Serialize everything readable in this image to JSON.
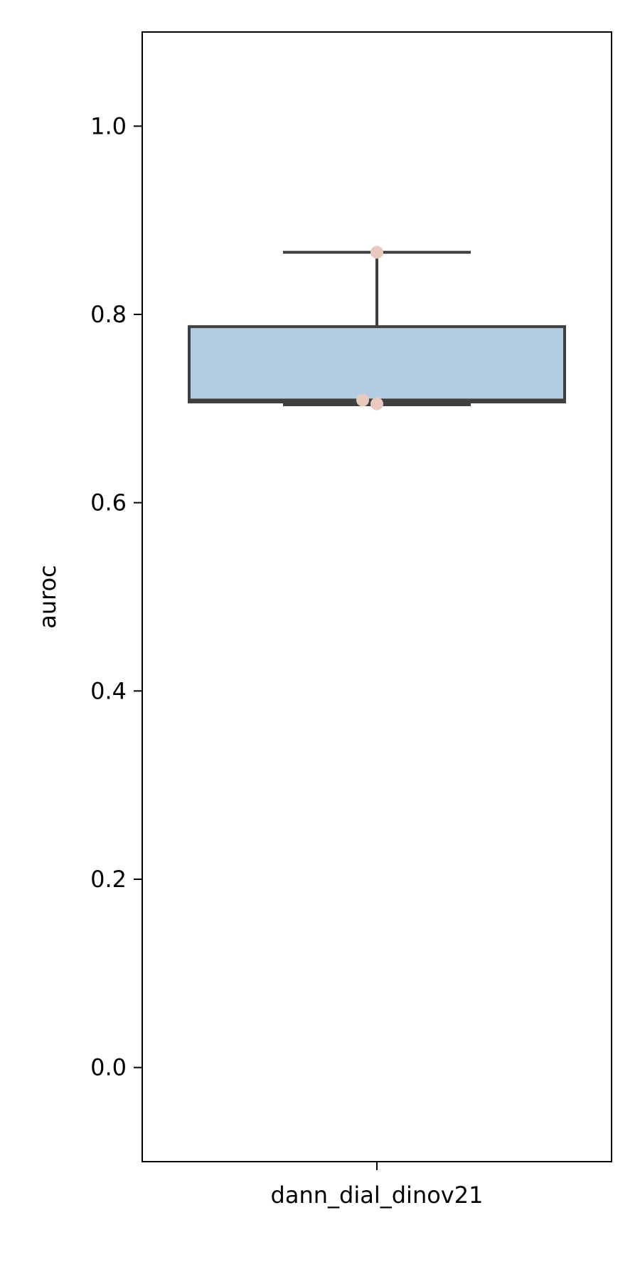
{
  "chart_data": {
    "type": "box",
    "title": "",
    "xlabel": "",
    "ylabel": "auroc",
    "ylim": [
      -0.1,
      1.1
    ],
    "yticks": [
      0.0,
      0.2,
      0.4,
      0.6,
      0.8,
      1.0
    ],
    "ytick_labels": [
      "0.0",
      "0.2",
      "0.4",
      "0.6",
      "0.8",
      "1.0"
    ],
    "grid": false,
    "categories": [
      "dann_dial_dinov21"
    ],
    "boxes": [
      {
        "category": "dann_dial_dinov21",
        "whisker_low": 0.704,
        "q1": 0.707,
        "median": 0.709,
        "q3": 0.787,
        "whisker_high": 0.866,
        "points": [
          0.709,
          0.705,
          0.866
        ],
        "box_color": "#b3cde3",
        "point_color": "#e8c9c0"
      }
    ],
    "edge_color": "#3f3f3f"
  }
}
